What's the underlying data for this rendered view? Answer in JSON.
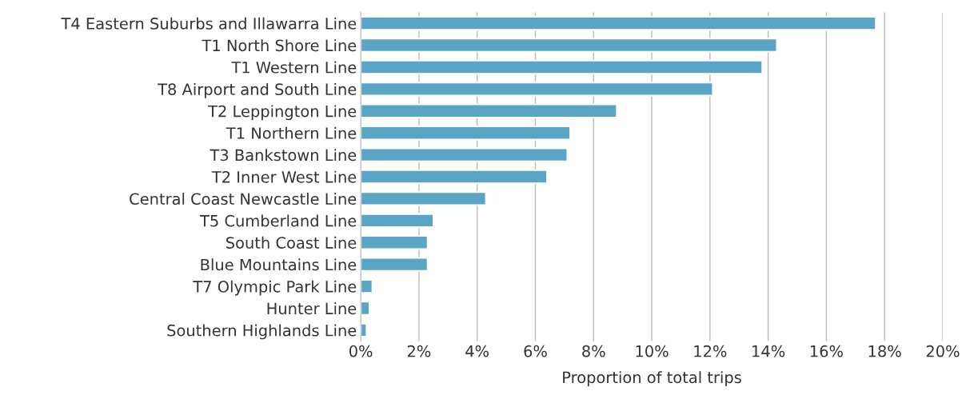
{
  "chart_data": {
    "type": "bar",
    "orientation": "horizontal",
    "xlabel": "Proportion of total trips",
    "categories": [
      "T4 Eastern Suburbs and Illawarra Line",
      "T1 North Shore Line",
      "T1 Western Line",
      "T8 Airport and South Line",
      "T2 Leppington Line",
      "T1 Northern Line",
      "T3 Bankstown Line",
      "T2 Inner West Line",
      "Central Coast Newcastle Line",
      "T5 Cumberland Line",
      "South Coast Line",
      "Blue Mountains Line",
      "T7 Olympic Park Line",
      "Hunter Line",
      "Southern Highlands Line"
    ],
    "values": [
      17.7,
      14.3,
      13.8,
      12.1,
      8.8,
      7.2,
      7.1,
      6.4,
      4.3,
      2.5,
      2.3,
      2.3,
      0.4,
      0.3,
      0.2
    ],
    "color": "#5aa5c6",
    "xlim": [
      0,
      20
    ],
    "xticks": [
      {
        "value": 0,
        "label": "0%"
      },
      {
        "value": 2,
        "label": "2%"
      },
      {
        "value": 4,
        "label": "4%"
      },
      {
        "value": 6,
        "label": "6%"
      },
      {
        "value": 8,
        "label": "8%"
      },
      {
        "value": 10,
        "label": "10%"
      },
      {
        "value": 12,
        "label": "12%"
      },
      {
        "value": 14,
        "label": "14%"
      },
      {
        "value": 16,
        "label": "16%"
      },
      {
        "value": 18,
        "label": "18%"
      },
      {
        "value": 20,
        "label": "20%"
      }
    ],
    "grid": "x",
    "legend": false
  }
}
